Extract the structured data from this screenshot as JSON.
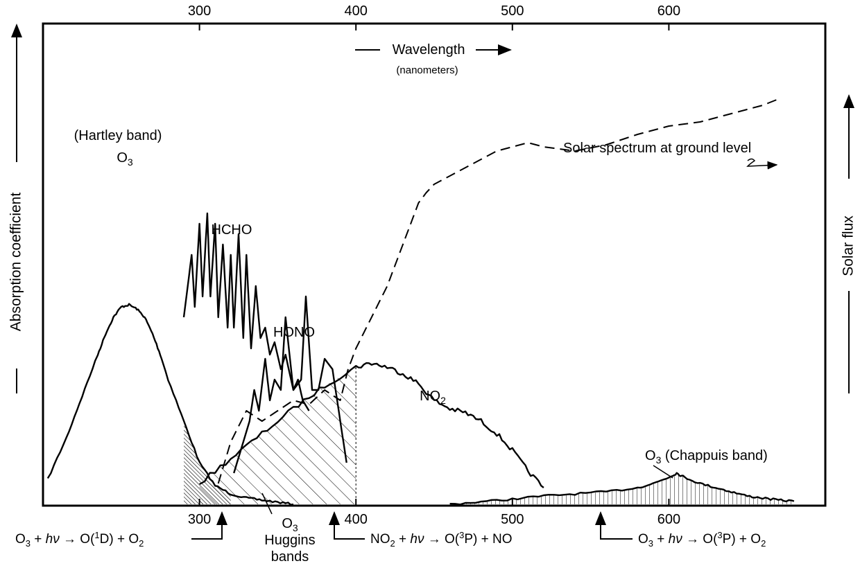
{
  "chart_data": {
    "type": "line",
    "title": "",
    "x_axis": {
      "label": "Wavelength",
      "unit": "(nanometers)",
      "ticks": [
        300,
        400,
        500,
        600
      ],
      "range": [
        200,
        700
      ]
    },
    "y_axis_left": {
      "label": "Absorption coefficient"
    },
    "y_axis_right": {
      "label": "Solar flux"
    },
    "grid": false,
    "series": [
      {
        "name": "O3",
        "band_label": "(Hartley band)",
        "style": "solid",
        "x": [
          203,
          215,
          225,
          235,
          240,
          245,
          250,
          255,
          260,
          265,
          270,
          275,
          280,
          290,
          300,
          310,
          320,
          330,
          340,
          350,
          360
        ],
        "y": [
          0.12,
          0.32,
          0.52,
          0.72,
          0.82,
          0.9,
          0.95,
          0.96,
          0.94,
          0.9,
          0.82,
          0.72,
          0.6,
          0.4,
          0.2,
          0.09,
          0.05,
          0.03,
          0.02,
          0.01,
          0.0
        ]
      },
      {
        "name": "HCHO",
        "style": "solid",
        "x": [
          290,
          295,
          297,
          300,
          302,
          305,
          307,
          310,
          312,
          315,
          318,
          320,
          322,
          325,
          328,
          330,
          333,
          336,
          339,
          342,
          345,
          348,
          352,
          355,
          360,
          363,
          366,
          370
        ],
        "y": [
          0.9,
          1.2,
          0.95,
          1.35,
          1.0,
          1.4,
          1.0,
          1.35,
          0.9,
          1.25,
          0.85,
          1.2,
          0.85,
          1.3,
          0.8,
          1.2,
          0.75,
          1.05,
          0.8,
          0.85,
          0.72,
          0.78,
          0.65,
          0.72,
          0.55,
          0.6,
          0.5,
          0.45
        ]
      },
      {
        "name": "HONO",
        "style": "solid",
        "x": [
          322,
          328,
          332,
          335,
          338,
          342,
          345,
          348,
          352,
          355,
          360,
          365,
          368,
          372,
          376,
          380,
          385,
          390,
          394
        ],
        "y": [
          0.15,
          0.3,
          0.4,
          0.55,
          0.45,
          0.7,
          0.5,
          0.6,
          0.55,
          0.9,
          0.55,
          0.6,
          1.0,
          0.55,
          0.55,
          0.7,
          0.65,
          0.4,
          0.2
        ]
      },
      {
        "name": "NO2",
        "style": "solid",
        "x": [
          300,
          320,
          340,
          360,
          380,
          400,
          410,
          420,
          430,
          440,
          450,
          460,
          470,
          480,
          490,
          500,
          510,
          520
        ],
        "y": [
          0.1,
          0.22,
          0.34,
          0.46,
          0.57,
          0.66,
          0.68,
          0.66,
          0.63,
          0.58,
          0.5,
          0.46,
          0.44,
          0.4,
          0.34,
          0.26,
          0.16,
          0.08
        ]
      },
      {
        "name": "Solar spectrum at ground level",
        "style": "dashed",
        "x": [
          312,
          320,
          330,
          340,
          350,
          360,
          370,
          380,
          390,
          395,
          400,
          410,
          420,
          430,
          440,
          445,
          450,
          460,
          470,
          480,
          490,
          500,
          510,
          520,
          540,
          560,
          580,
          600,
          620,
          640,
          660,
          670
        ],
        "y": [
          0.1,
          0.3,
          0.45,
          0.4,
          0.45,
          0.5,
          0.48,
          0.55,
          0.5,
          0.65,
          0.75,
          0.9,
          1.05,
          1.25,
          1.45,
          1.5,
          1.54,
          1.58,
          1.62,
          1.66,
          1.7,
          1.72,
          1.74,
          1.72,
          1.7,
          1.73,
          1.78,
          1.82,
          1.84,
          1.88,
          1.92,
          1.95
        ]
      },
      {
        "name": "O3 (Chappuis band)",
        "style": "solid",
        "x": [
          460,
          480,
          500,
          520,
          540,
          560,
          580,
          590,
          600,
          605,
          610,
          620,
          630,
          640,
          650,
          660,
          670,
          680
        ],
        "y": [
          0.0,
          0.012,
          0.025,
          0.04,
          0.05,
          0.06,
          0.08,
          0.1,
          0.13,
          0.15,
          0.13,
          0.1,
          0.08,
          0.06,
          0.04,
          0.03,
          0.02,
          0.015
        ]
      }
    ],
    "annotations": {
      "huggins": [
        "O3",
        "Huggins",
        "bands"
      ],
      "arrow_labels": {
        "o1d": "O3 + hν → O(1D) + O2",
        "no2_photolysis": "NO2 + hν → O(3P) + NO",
        "o3p": "O3 + hν → O(3P) + O2"
      }
    }
  }
}
